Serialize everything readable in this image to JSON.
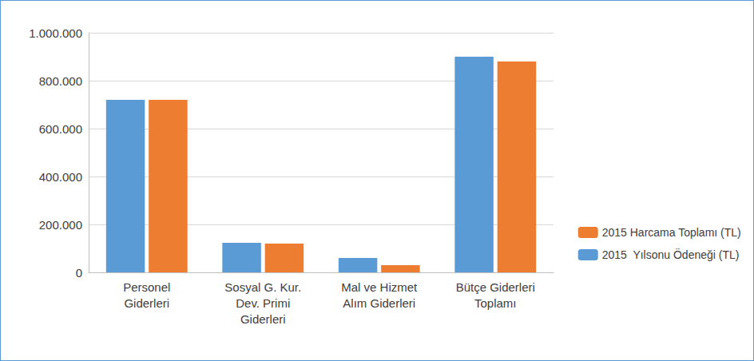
{
  "chart_data": {
    "type": "bar",
    "categories": [
      "Personel\nGiderleri",
      "Sosyal G. Kur.\nDev. Primi\nGiderleri",
      "Mal ve Hizmet\nAlım Giderleri",
      "Bütçe Giderleri\nToplamı"
    ],
    "series": [
      {
        "name": "2015  Yılsonu Ödeneği (TL)",
        "color": "#5B9BD5",
        "values": [
          720000,
          123000,
          60000,
          900000
        ]
      },
      {
        "name": "2015 Harcama Toplamı (TL)",
        "color": "#ED7D31",
        "values": [
          720000,
          120000,
          30000,
          880000
        ]
      }
    ],
    "ylim": [
      0,
      1000000
    ],
    "yticks": [
      0,
      {
        "value": 200000,
        "label": "200.000"
      },
      {
        "value": 400000,
        "label": "400.000"
      },
      {
        "value": 600000,
        "label": "600.000"
      },
      {
        "value": 800000,
        "label": "800.000"
      },
      {
        "value": 1000000,
        "label": "1.000.000"
      }
    ],
    "grid": true,
    "legend": "lower right"
  }
}
